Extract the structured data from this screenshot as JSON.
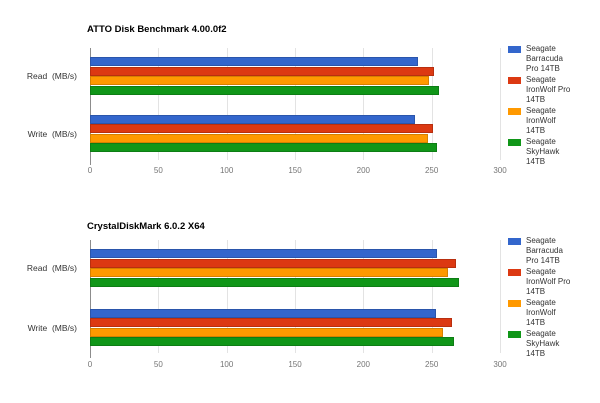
{
  "page": {
    "background": "#ffffff"
  },
  "charts_ui": {
    "axis_color": "#8c8c8c",
    "gridline_color": "#e3e3e3",
    "tick_label_color": "#757575",
    "category_label_color": "#333333",
    "legend_text_color": "#333333",
    "title_color": "#000000"
  },
  "chart_data": [
    {
      "type": "bar",
      "orientation": "horizontal",
      "title": "ATTO Disk Benchmark 4.00.0f2",
      "categories": [
        "Read  (MB/s)",
        "Write  (MB/s)"
      ],
      "xlabel": "",
      "xlim": [
        0,
        300
      ],
      "x_ticks": [
        0,
        50,
        100,
        150,
        200,
        250,
        300
      ],
      "grid": true,
      "legend_position": "right",
      "series": [
        {
          "name": "Seagate Barracuda Pro 14TB",
          "legend_lines": [
            "Seagate",
            "Barracuda",
            "Pro 14TB"
          ],
          "color": "#3366cc",
          "values": [
            240,
            238
          ]
        },
        {
          "name": "Seagate IronWolf Pro 14TB",
          "legend_lines": [
            "Seagate",
            "IronWolf Pro",
            "14TB"
          ],
          "color": "#dc3912",
          "values": [
            252,
            251
          ]
        },
        {
          "name": "Seagate IronWolf 14TB",
          "legend_lines": [
            "Seagate",
            "IronWolf",
            "14TB"
          ],
          "color": "#ff9900",
          "values": [
            248,
            247
          ]
        },
        {
          "name": "Seagate SkyHawk 14TB",
          "legend_lines": [
            "Seagate",
            "SkyHawk",
            "14TB"
          ],
          "color": "#109618",
          "values": [
            255,
            254
          ]
        }
      ]
    },
    {
      "type": "bar",
      "orientation": "horizontal",
      "title": "CrystalDiskMark 6.0.2 X64",
      "categories": [
        "Read  (MB/s)",
        "Write  (MB/s)"
      ],
      "xlabel": "",
      "xlim": [
        0,
        300
      ],
      "x_ticks": [
        0,
        50,
        100,
        150,
        200,
        250,
        300
      ],
      "grid": true,
      "legend_position": "right",
      "series": [
        {
          "name": "Seagate Barracuda Pro 14TB",
          "legend_lines": [
            "Seagate",
            "Barracuda",
            "Pro 14TB"
          ],
          "color": "#3366cc",
          "values": [
            254,
            253
          ]
        },
        {
          "name": "Seagate IronWolf Pro 14TB",
          "legend_lines": [
            "Seagate",
            "IronWolf Pro",
            "14TB"
          ],
          "color": "#dc3912",
          "values": [
            268,
            265
          ]
        },
        {
          "name": "Seagate IronWolf 14TB",
          "legend_lines": [
            "Seagate",
            "IronWolf",
            "14TB"
          ],
          "color": "#ff9900",
          "values": [
            262,
            258
          ]
        },
        {
          "name": "Seagate SkyHawk 14TB",
          "legend_lines": [
            "Seagate",
            "SkyHawk",
            "14TB"
          ],
          "color": "#109618",
          "values": [
            270,
            266
          ]
        }
      ]
    }
  ]
}
